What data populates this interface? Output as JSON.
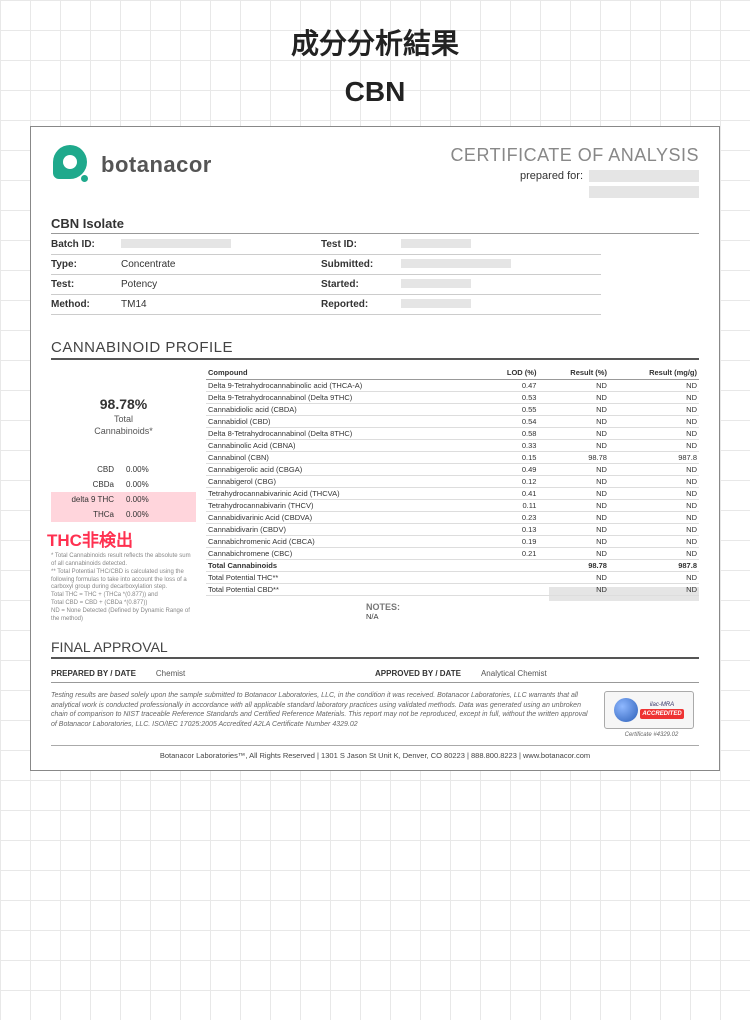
{
  "page": {
    "title": "成分分析結果",
    "subtitle": "CBN"
  },
  "brand": "botanacor",
  "cert_title": "CERTIFICATE OF ANALYSIS",
  "prepared_for": "prepared for:",
  "isolate": "CBN Isolate",
  "meta": {
    "batch_k": "Batch ID:",
    "test_k": "Test ID:",
    "type_k": "Type:",
    "type_v": "Concentrate",
    "submitted_k": "Submitted:",
    "testn_k": "Test:",
    "testn_v": "Potency",
    "started_k": "Started:",
    "method_k": "Method:",
    "method_v": "TM14",
    "reported_k": "Reported:"
  },
  "profile_title": "CANNABINOID PROFILE",
  "total_pct": "98.78%",
  "total_lbl1": "Total",
  "total_lbl2": "Cannabinoids*",
  "mini": [
    {
      "l": "CBD",
      "v": "0.00%",
      "hl": false
    },
    {
      "l": "CBDa",
      "v": "0.00%",
      "hl": false
    },
    {
      "l": "delta 9 THC",
      "v": "0.00%",
      "hl": true
    },
    {
      "l": "THCa",
      "v": "0.00%",
      "hl": true
    }
  ],
  "thc_callout": "THC非検出",
  "footnotes": [
    "* Total Cannabinoids result reflects the absolute sum of all cannabinoids detected.",
    "** Total Potential THC/CBD is calculated using the following formulas to take into account the loss of a carboxyl group during decarboxylation step.",
    "   Total THC = THC + (THCa *(0.877)) and",
    "   Total CBD = CBD + (CBDa *(0.877))",
    "ND = None Detected (Defined by Dynamic Range of the method)"
  ],
  "tbl": {
    "h_compound": "Compound",
    "h_lod": "LOD (%)",
    "h_res": "Result (%)",
    "h_mg": "Result (mg/g)",
    "rows": [
      {
        "c": "Delta 9-Tetrahydrocannabinolic acid (THCA-A)",
        "lod": "0.47",
        "r": "ND",
        "m": "ND"
      },
      {
        "c": "Delta 9-Tetrahydrocannabinol  (Delta 9THC)",
        "lod": "0.53",
        "r": "ND",
        "m": "ND"
      },
      {
        "c": "Cannabidiolic acid  (CBDA)",
        "lod": "0.55",
        "r": "ND",
        "m": "ND"
      },
      {
        "c": "Cannabidiol  (CBD)",
        "lod": "0.54",
        "r": "ND",
        "m": "ND"
      },
      {
        "c": "Delta 8-Tetrahydrocannabinol  (Delta 8THC)",
        "lod": "0.58",
        "r": "ND",
        "m": "ND"
      },
      {
        "c": "Cannabinolic Acid  (CBNA)",
        "lod": "0.33",
        "r": "ND",
        "m": "ND"
      },
      {
        "c": "Cannabinol  (CBN)",
        "lod": "0.15",
        "r": "98.78",
        "m": "987.8"
      },
      {
        "c": "Cannabigerolic acid  (CBGA)",
        "lod": "0.49",
        "r": "ND",
        "m": "ND"
      },
      {
        "c": "Cannabigerol  (CBG)",
        "lod": "0.12",
        "r": "ND",
        "m": "ND"
      },
      {
        "c": "Tetrahydrocannabivarinic Acid  (THCVA)",
        "lod": "0.41",
        "r": "ND",
        "m": "ND"
      },
      {
        "c": "Tetrahydrocannabivarin  (THCV)",
        "lod": "0.11",
        "r": "ND",
        "m": "ND"
      },
      {
        "c": "Cannabidivarinic Acid  (CBDVA)",
        "lod": "0.23",
        "r": "ND",
        "m": "ND"
      },
      {
        "c": "Cannabidivarin  (CBDV)",
        "lod": "0.13",
        "r": "ND",
        "m": "ND"
      },
      {
        "c": "Cannabichromenic Acid  (CBCA)",
        "lod": "0.19",
        "r": "ND",
        "m": "ND"
      },
      {
        "c": "Cannabichromene  (CBC)",
        "lod": "0.21",
        "r": "ND",
        "m": "ND"
      }
    ],
    "totals": [
      {
        "c": "Total Cannabinoids",
        "r": "98.78",
        "m": "987.8"
      },
      {
        "c": "Total Potential THC**",
        "r": "ND",
        "m": "ND"
      },
      {
        "c": "Total Potential CBD**",
        "r": "ND",
        "m": "ND"
      }
    ]
  },
  "notes_k": "NOTES:",
  "notes_v": "N/A",
  "final": "FINAL APPROVAL",
  "sig": {
    "prep_k": "PREPARED BY / DATE",
    "prep_v": "Chemist",
    "appr_k": "APPROVED BY / DATE",
    "appr_v": "Analytical Chemist"
  },
  "disclaimer": "Testing results are based solely upon the sample submitted to Botanacor Laboratories, LLC, in the condition it was received. Botanacor Laboratories, LLC warrants that all analytical work is conducted professionally in accordance with all applicable standard laboratory practices using validated methods. Data was generated using an unbroken chain of comparison to NIST traceable Reference Standards and Certified Reference Materials. This report may not be reproduced, except in full, without the written approval of Botanacor Laboratories, LLC. ISO/IEC 17025:2005 Accredited A2LA Certificate Number 4329.02",
  "accred_label": "ilac-MRA",
  "accred_tag": "ACCREDITED",
  "cert_num": "Certificate #4329.02",
  "bottom": "Botanacor Laboratories™, All Rights Reserved  |  1301 S Jason St Unit K, Denver, CO 80223  |  888.800.8223  |  www.botanacor.com"
}
